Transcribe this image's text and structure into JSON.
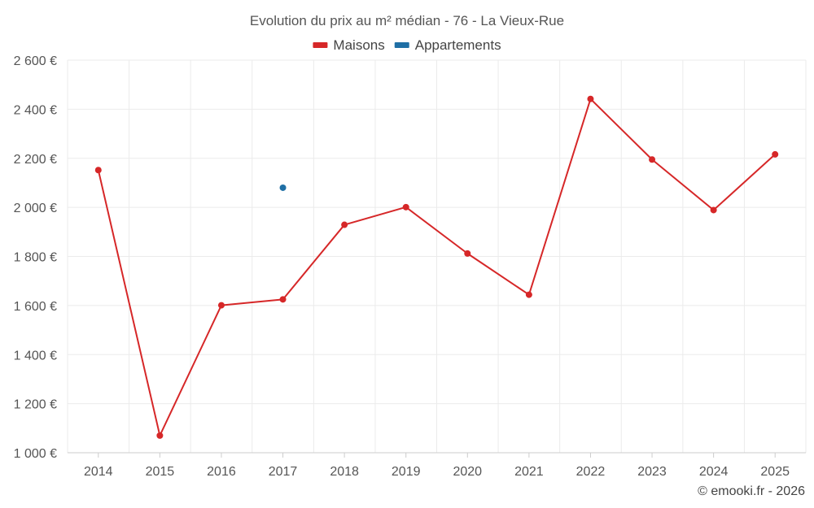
{
  "chart_data": {
    "type": "line",
    "title": "Evolution du prix au m² médian - 76 - La Vieux-Rue",
    "categories": [
      "2014",
      "2015",
      "2016",
      "2017",
      "2018",
      "2019",
      "2020",
      "2021",
      "2022",
      "2023",
      "2024",
      "2025"
    ],
    "series": [
      {
        "name": "Maisons",
        "color": "#d62728",
        "values": [
          2152,
          1070,
          1601,
          1625,
          1929,
          2001,
          1812,
          1644,
          2442,
          2195,
          1989,
          2216
        ]
      },
      {
        "name": "Appartements",
        "color": "#1f6fa5",
        "values": [
          null,
          null,
          null,
          2080,
          null,
          null,
          null,
          null,
          null,
          null,
          null,
          null
        ]
      }
    ],
    "ylim": [
      1000,
      2600
    ],
    "yticks": [
      1000,
      1200,
      1400,
      1600,
      1800,
      2000,
      2200,
      2400,
      2600
    ],
    "ytick_labels": [
      "1 000 €",
      "1 200 €",
      "1 400 €",
      "1 600 €",
      "1 800 €",
      "2 000 €",
      "2 200 €",
      "2 400 €",
      "2 600 €"
    ],
    "xlabel": "",
    "ylabel": "",
    "grid": true,
    "legend_position": "top-center"
  },
  "credit": "© emooki.fr - 2026"
}
